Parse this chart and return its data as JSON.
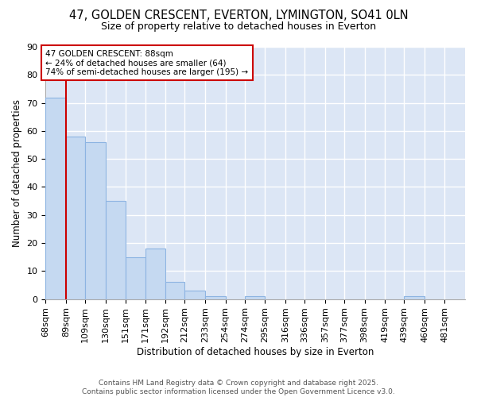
{
  "title1": "47, GOLDEN CRESCENT, EVERTON, LYMINGTON, SO41 0LN",
  "title2": "Size of property relative to detached houses in Everton",
  "xlabel": "Distribution of detached houses by size in Everton",
  "ylabel": "Number of detached properties",
  "bar_edges": [
    68,
    89,
    109,
    130,
    151,
    171,
    192,
    212,
    233,
    254,
    274,
    295,
    316,
    336,
    357,
    377,
    398,
    419,
    439,
    460,
    481
  ],
  "bar_heights": [
    72,
    58,
    56,
    35,
    15,
    18,
    6,
    3,
    1,
    0,
    1,
    0,
    0,
    0,
    0,
    0,
    0,
    0,
    1,
    0
  ],
  "bar_color": "#c5d9f1",
  "bar_edge_color": "#8db4e2",
  "property_line_x": 89,
  "property_line_color": "#cc0000",
  "annotation_text": "47 GOLDEN CRESCENT: 88sqm\n← 24% of detached houses are smaller (64)\n74% of semi-detached houses are larger (195) →",
  "annotation_box_color": "#cc0000",
  "ylim": [
    0,
    90
  ],
  "yticks": [
    0,
    10,
    20,
    30,
    40,
    50,
    60,
    70,
    80,
    90
  ],
  "plot_bg_color": "#dce6f5",
  "fig_bg_color": "#ffffff",
  "grid_color": "#ffffff",
  "footer_text": "Contains HM Land Registry data © Crown copyright and database right 2025.\nContains public sector information licensed under the Open Government Licence v3.0.",
  "tick_label_fontsize": 8,
  "title1_fontsize": 10.5,
  "title2_fontsize": 9,
  "axis_label_fontsize": 8.5,
  "footer_fontsize": 6.5
}
